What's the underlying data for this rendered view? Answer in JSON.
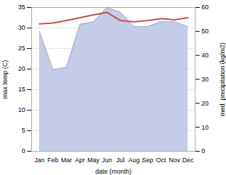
{
  "chart_data": {
    "type": "line",
    "xlabel": "date (month)",
    "ylabel": "max temp (C)",
    "y2label": "med. precipitation (kg/m2)",
    "categories": [
      "Jan",
      "Feb",
      "Mar",
      "Apr",
      "May",
      "Jun",
      "Jul",
      "Aug",
      "Sep",
      "Oct",
      "Nov",
      "Dec"
    ],
    "series": [
      {
        "type": "area",
        "axis": "y2",
        "color": "#c5cce8",
        "values": [
          50,
          34,
          35,
          53,
          54,
          60,
          58,
          52,
          52,
          54,
          54,
          52
        ]
      },
      {
        "type": "line",
        "color": "#c0504d",
        "values": [
          31.0,
          31.2,
          31.8,
          32.5,
          33.2,
          33.8,
          31.8,
          31.5,
          31.8,
          32.3,
          32.0,
          32.5
        ]
      }
    ],
    "ylim": [
      0,
      35
    ],
    "yticks": [
      0,
      5,
      10,
      15,
      20,
      25,
      30,
      35
    ],
    "y2lim": [
      0,
      60
    ],
    "y2ticks": [
      0,
      10,
      20,
      30,
      40,
      50,
      60
    ],
    "grid": true
  }
}
